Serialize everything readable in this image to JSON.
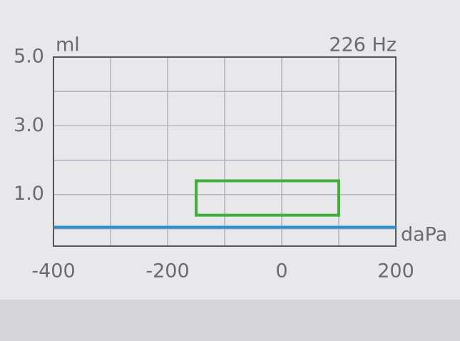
{
  "chart_data": {
    "type": "line",
    "y_label": "ml",
    "frequency_label": "226 Hz",
    "x_label": "daPa",
    "xlim": [
      -400,
      200
    ],
    "xticks": [
      -400,
      -200,
      0,
      200
    ],
    "x_minor_ticks": [
      -300,
      -100,
      100
    ],
    "ylim": [
      -0.5,
      5
    ],
    "yticks": [
      {
        "value": 1,
        "label": "1.0"
      },
      {
        "value": 3,
        "label": "3.0"
      },
      {
        "value": 5,
        "label": "5.0"
      }
    ],
    "y_minor_ticks": [
      0,
      2,
      4
    ],
    "grid": true,
    "series": [
      {
        "color": "#2a8fd0",
        "x": [
          -400,
          200
        ],
        "values": [
          0.05,
          0.05
        ]
      }
    ],
    "normal_range": {
      "color": "#3fae3a",
      "x": [
        -150,
        100
      ],
      "y": [
        0.4,
        1.4
      ]
    }
  }
}
